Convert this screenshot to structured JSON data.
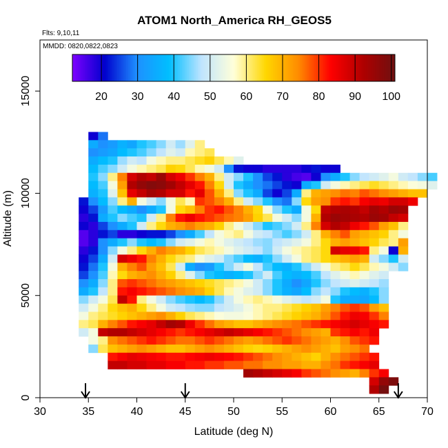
{
  "chart_data": {
    "type": "heatmap",
    "title": "ATOM1 North_America RH_GEOS5",
    "annotations": {
      "flights": "Flts: 9,10,11",
      "dates": "MMDD: 0820,0822,0823"
    },
    "xlabel": "Latitude (deg N)",
    "ylabel": "Altitude (m)",
    "xlim": [
      30,
      70
    ],
    "ylim": [
      0,
      17500
    ],
    "x_ticks": [
      "30",
      "35",
      "40",
      "45",
      "50",
      "55",
      "60",
      "65",
      "70"
    ],
    "x_tick_values": [
      30,
      35,
      40,
      45,
      50,
      55,
      60,
      65,
      70
    ],
    "y_ticks": [
      "0",
      "5000",
      "10000",
      "15000"
    ],
    "y_tick_values": [
      0,
      5000,
      10000,
      15000
    ],
    "colorbar": {
      "min": 12,
      "max": 101,
      "tick_labels": [
        "20",
        "30",
        "40",
        "50",
        "60",
        "70",
        "80",
        "90",
        "100"
      ],
      "tick_values": [
        20,
        30,
        40,
        50,
        60,
        70,
        80,
        90,
        100
      ],
      "colors": [
        "#7f00ff",
        "#0000cd",
        "#1e90ff",
        "#00bfff",
        "#bfe4ff",
        "#ffffd9",
        "#ffd700",
        "#ff8c00",
        "#ff0000",
        "#b00000",
        "#6e1010"
      ]
    },
    "cell_size": {
      "lat": 1.0,
      "alt": 400
    },
    "rows": [
      {
        "alt": 12600,
        "lat0": 35,
        "values": [
          20,
          28
        ]
      },
      {
        "alt": 12200,
        "lat0": 35,
        "values": [
          35,
          30,
          32,
          36,
          34,
          40,
          42,
          45,
          50,
          46,
          52,
          60
        ]
      },
      {
        "alt": 11800,
        "lat0": 35,
        "values": [
          30,
          32,
          34,
          38,
          40,
          42,
          45,
          48,
          52,
          50,
          58,
          60,
          62
        ]
      },
      {
        "alt": 11400,
        "lat0": 35,
        "values": [
          35,
          38,
          40,
          46,
          50,
          48,
          55,
          58,
          60,
          60,
          62,
          64,
          66,
          62,
          58,
          52
        ]
      },
      {
        "alt": 11000,
        "lat0": 35,
        "values": [
          38,
          42,
          45,
          50,
          55,
          58,
          60,
          62,
          66,
          65,
          62,
          58,
          55,
          50,
          30,
          22,
          20,
          20,
          18,
          18,
          18,
          18,
          20,
          22,
          20,
          20
        ]
      },
      {
        "alt": 10600,
        "lat0": 35,
        "values": [
          40,
          45,
          60,
          75,
          88,
          92,
          90,
          95,
          88,
          85,
          80,
          75,
          70,
          60,
          50,
          45,
          40,
          30,
          25,
          22,
          18,
          16,
          15,
          20,
          30,
          35,
          40,
          45,
          48,
          50,
          52,
          55,
          50,
          48,
          45,
          42
        ]
      },
      {
        "alt": 10200,
        "lat0": 35,
        "values": [
          38,
          42,
          55,
          72,
          92,
          96,
          98,
          97,
          94,
          90,
          86,
          82,
          75,
          65,
          50,
          40,
          35,
          30,
          28,
          25,
          22,
          20,
          35,
          40,
          50,
          55,
          58,
          60,
          62,
          64,
          62,
          60,
          58,
          56,
          55,
          52
        ]
      },
      {
        "alt": 9800,
        "lat0": 35,
        "values": [
          36,
          40,
          52,
          68,
          86,
          90,
          94,
          92,
          88,
          88,
          82,
          86,
          78,
          70,
          60,
          45,
          40,
          35,
          25,
          20,
          25,
          35,
          60,
          70,
          72,
          74,
          76,
          75,
          78,
          76,
          74,
          72,
          70,
          68,
          68
        ]
      },
      {
        "alt": 9400,
        "lat0": 34,
        "values": [
          22,
          30,
          38,
          45,
          60,
          70,
          55,
          50,
          45,
          55,
          62,
          58,
          80,
          78,
          75,
          70,
          60,
          50,
          45,
          40,
          30,
          28,
          45,
          65,
          72,
          74,
          80,
          82,
          80,
          84,
          86,
          85,
          88,
          88,
          85
        ]
      },
      {
        "alt": 9000,
        "lat0": 34,
        "values": [
          20,
          25,
          32,
          42,
          38,
          35,
          30,
          35,
          40,
          55,
          65,
          68,
          75,
          80,
          82,
          78,
          75,
          70,
          65,
          55,
          45,
          40,
          35,
          55,
          65,
          90,
          92,
          93,
          92,
          90,
          94,
          92,
          95,
          94
        ]
      },
      {
        "alt": 8600,
        "lat0": 34,
        "values": [
          18,
          22,
          35,
          40,
          45,
          42,
          40,
          50,
          60,
          75,
          82,
          85,
          82,
          80,
          78,
          76,
          75,
          72,
          66,
          62,
          55,
          50,
          45,
          55,
          70,
          92,
          95,
          94,
          93,
          92,
          95,
          94,
          90,
          88
        ]
      },
      {
        "alt": 8200,
        "lat0": 34,
        "values": [
          20,
          18,
          25,
          30,
          35,
          40,
          50,
          60,
          65,
          70,
          72,
          75,
          72,
          70,
          66,
          60,
          55,
          50,
          45,
          40,
          42,
          45,
          50,
          60,
          75,
          88,
          92,
          90,
          85,
          82,
          78,
          72,
          68,
          60
        ]
      },
      {
        "alt": 7800,
        "lat0": 34,
        "values": [
          15,
          18,
          22,
          25,
          18,
          18,
          20,
          22,
          22,
          25,
          30,
          35,
          42,
          48,
          55,
          58,
          60,
          55,
          50,
          48,
          45,
          42,
          45,
          50,
          60,
          70,
          75,
          78,
          72,
          70,
          68,
          66,
          60,
          55
        ]
      },
      {
        "alt": 7400,
        "lat0": 34,
        "values": [
          15,
          18,
          30,
          35,
          40,
          45,
          40,
          38,
          40,
          45,
          50,
          52,
          55,
          58,
          55,
          52,
          50,
          48,
          46,
          45,
          48,
          50,
          52,
          55,
          60,
          65,
          70,
          72,
          70,
          68,
          66,
          62,
          60,
          72
        ]
      },
      {
        "alt": 7000,
        "lat0": 34,
        "values": [
          18,
          22,
          30,
          45,
          55,
          60,
          65,
          70,
          75,
          72,
          70,
          66,
          62,
          60,
          58,
          55,
          52,
          50,
          48,
          45,
          50,
          55,
          58,
          60,
          62,
          65,
          88,
          86,
          85,
          82,
          60,
          55,
          20,
          70
        ]
      },
      {
        "alt": 6600,
        "lat0": 34,
        "values": [
          20,
          25,
          35,
          50,
          88,
          85,
          82,
          75,
          70,
          65,
          62,
          60,
          55,
          52,
          50,
          45,
          42,
          38,
          36,
          40,
          45,
          50,
          55,
          60,
          62,
          65,
          68,
          70,
          72,
          70,
          50,
          45,
          40,
          50
        ]
      },
      {
        "alt": 6200,
        "lat0": 34,
        "values": [
          22,
          28,
          40,
          55,
          70,
          75,
          78,
          72,
          68,
          62,
          50,
          35,
          30,
          32,
          40,
          45,
          50,
          55,
          48,
          42,
          38,
          36,
          40,
          45,
          50,
          55,
          60,
          62,
          65,
          62,
          58,
          55,
          50,
          45
        ]
      },
      {
        "alt": 5800,
        "lat0": 34,
        "values": [
          25,
          30,
          42,
          58,
          65,
          70,
          72,
          74,
          70,
          66,
          60,
          52,
          45,
          40,
          38,
          36,
          38,
          40,
          45,
          50,
          42,
          38,
          36,
          38,
          42,
          48,
          52,
          55,
          58,
          55,
          52,
          50
        ]
      },
      {
        "alt": 5400,
        "lat0": 34,
        "values": [
          30,
          35,
          45,
          60,
          78,
          80,
          78,
          76,
          74,
          72,
          70,
          68,
          66,
          64,
          62,
          60,
          58,
          55,
          50,
          45,
          40,
          35,
          30,
          34,
          40,
          45,
          48,
          50,
          52,
          50,
          48,
          46
        ]
      },
      {
        "alt": 5000,
        "lat0": 34,
        "values": [
          35,
          40,
          48,
          60,
          82,
          84,
          82,
          80,
          78,
          76,
          74,
          72,
          70,
          66,
          62,
          58,
          55,
          52,
          50,
          45,
          40,
          36,
          34,
          38,
          45,
          48,
          45,
          40,
          38,
          36,
          40,
          45
        ]
      },
      {
        "alt": 4600,
        "lat0": 34,
        "values": [
          45,
          50,
          55,
          62,
          90,
          82,
          60,
          55,
          50,
          45,
          42,
          40,
          38,
          40,
          45,
          50,
          55,
          58,
          60,
          58,
          55,
          52,
          50,
          48,
          50,
          55,
          40,
          35,
          35,
          34,
          38,
          45
        ]
      },
      {
        "alt": 4200,
        "lat0": 34,
        "values": [
          50,
          55,
          60,
          65,
          68,
          70,
          65,
          60,
          55,
          50,
          48,
          46,
          45,
          45,
          48,
          50,
          52,
          55,
          58,
          60,
          60,
          62,
          64,
          66,
          68,
          72,
          75,
          78,
          80,
          78,
          72,
          68
        ]
      },
      {
        "alt": 3800,
        "lat0": 34,
        "values": [
          55,
          60,
          62,
          64,
          66,
          68,
          70,
          72,
          74,
          70,
          66,
          62,
          60,
          58,
          56,
          55,
          55,
          56,
          58,
          60,
          62,
          64,
          66,
          68,
          70,
          74,
          78,
          82,
          85,
          84,
          80,
          75
        ]
      },
      {
        "alt": 3400,
        "lat0": 34,
        "values": [
          60,
          62,
          70,
          75,
          78,
          82,
          84,
          86,
          90,
          94,
          92,
          85,
          80,
          76,
          72,
          70,
          68,
          68,
          70,
          72,
          74,
          75,
          76,
          78,
          80,
          82,
          84,
          86,
          88,
          86,
          84,
          82
        ]
      },
      {
        "alt": 3000,
        "lat0": 34,
        "values": [
          50,
          55,
          90,
          92,
          92,
          90,
          88,
          86,
          84,
          82,
          80,
          82,
          84,
          86,
          88,
          90,
          88,
          86,
          84,
          82,
          80,
          78,
          76,
          74,
          72,
          70,
          80,
          82,
          84,
          82,
          85
        ]
      },
      {
        "alt": 2600,
        "lat0": 35,
        "values": [
          55,
          60,
          74,
          76,
          78,
          80,
          82,
          80,
          78,
          76,
          76,
          78,
          80,
          78,
          76,
          74,
          72,
          74,
          76,
          78,
          80,
          78,
          76,
          74,
          72,
          70,
          74,
          78,
          80,
          82
        ]
      },
      {
        "alt": 2200,
        "lat0": 35,
        "values": [
          45,
          62,
          68,
          70,
          72,
          74,
          72,
          70,
          68,
          68,
          70,
          72,
          74,
          72,
          70,
          68,
          66,
          65,
          66,
          68,
          70,
          72,
          74,
          72,
          70,
          68,
          72,
          74,
          76
        ]
      },
      {
        "alt": 1800,
        "lat0": 37,
        "values": [
          82,
          84,
          86,
          85,
          84,
          83,
          82,
          82,
          83,
          84,
          85,
          84,
          83,
          82,
          80,
          78,
          76,
          74,
          72,
          70,
          68,
          66,
          70,
          74,
          76,
          78,
          80,
          82
        ]
      },
      {
        "alt": 1400,
        "lat0": 37,
        "values": [
          90,
          90,
          88,
          88,
          86,
          86,
          84,
          84,
          82,
          82,
          80,
          80,
          78,
          78,
          76,
          76,
          74,
          74,
          72,
          72,
          70,
          70,
          74,
          76,
          80,
          82,
          84,
          86
        ]
      },
      {
        "alt": 1000,
        "lat0": 51,
        "values": [
          94,
          92,
          90,
          88,
          86,
          84,
          80,
          78,
          76,
          74,
          72,
          70,
          75,
          80,
          84
        ]
      },
      {
        "alt": 600,
        "lat0": 64,
        "values": [
          88,
          96,
          99
        ]
      },
      {
        "alt": 200,
        "lat0": 64,
        "values": [
          92,
          100
        ]
      }
    ],
    "flight_arrows": [
      34.7,
      45.0,
      67.0
    ]
  }
}
